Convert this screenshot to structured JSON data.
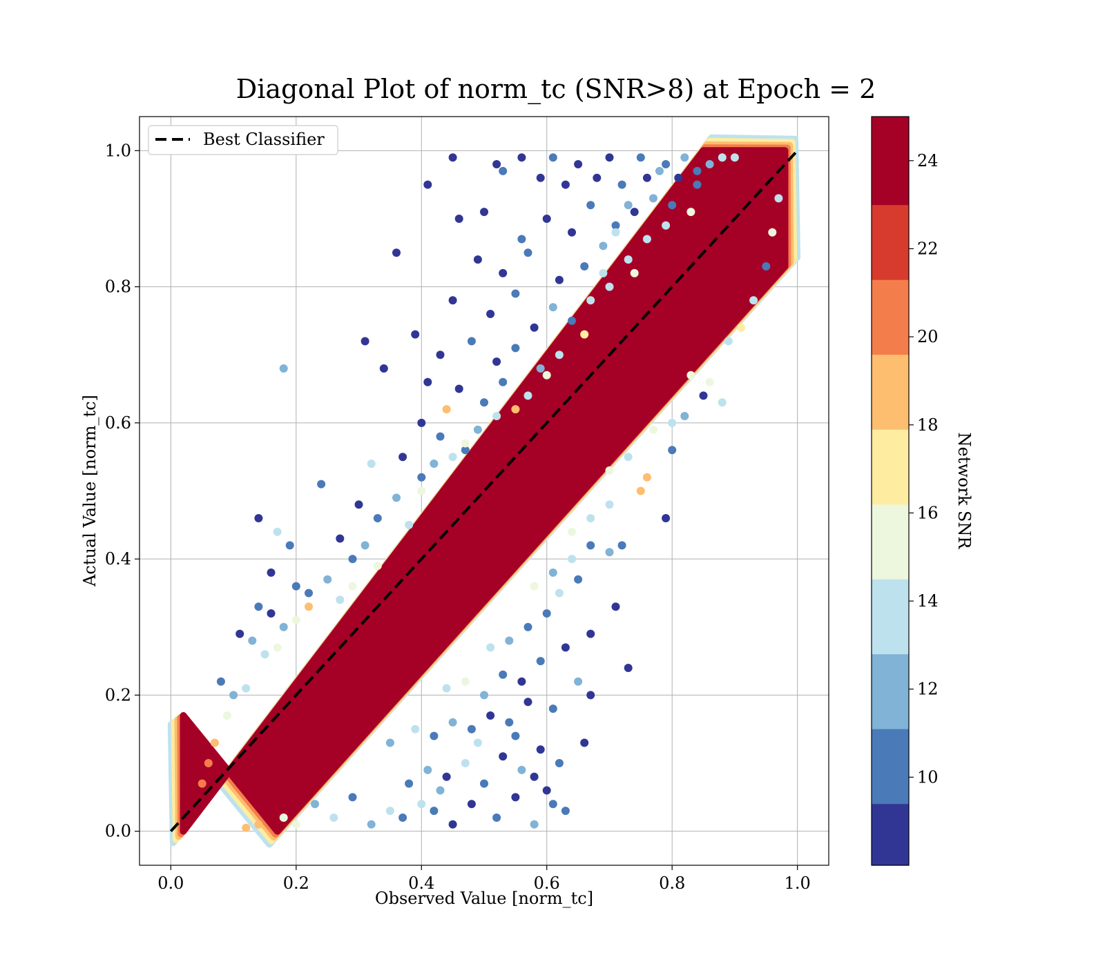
{
  "chart_data": {
    "type": "scatter",
    "title": "Diagonal Plot of norm_tc (SNR>8) at Epoch = 2",
    "xlabel": "Observed Value [norm_tc]",
    "ylabel": "Actual Value [norm_tc]",
    "xlim": [
      -0.05,
      1.05
    ],
    "ylim": [
      -0.05,
      1.05
    ],
    "x_ticks": [
      "0.0",
      "0.2",
      "0.4",
      "0.6",
      "0.8",
      "1.0"
    ],
    "y_ticks": [
      "0.0",
      "0.2",
      "0.4",
      "0.6",
      "0.8",
      "1.0"
    ],
    "grid": true,
    "legend": {
      "placement": "upper-left",
      "entries": [
        "Best Classifier"
      ]
    },
    "reference_line": {
      "name": "Best Classifier",
      "style": "dashed",
      "color": "#000000",
      "x": [
        0,
        1
      ],
      "y": [
        0,
        1
      ]
    },
    "colorbar": {
      "label": "Network SNR",
      "ticks": [
        "10",
        "12",
        "14",
        "16",
        "18",
        "20",
        "22",
        "24"
      ],
      "range": [
        8,
        25
      ],
      "bands": [
        {
          "from": 8,
          "to": 9.4,
          "color": "#313695"
        },
        {
          "from": 9.4,
          "to": 11.1,
          "color": "#4a7ab8"
        },
        {
          "from": 11.1,
          "to": 12.8,
          "color": "#80b3d6"
        },
        {
          "from": 12.8,
          "to": 14.5,
          "color": "#bde2ee"
        },
        {
          "from": 14.5,
          "to": 16.2,
          "color": "#edf7de"
        },
        {
          "from": 16.2,
          "to": 17.9,
          "color": "#feeca1"
        },
        {
          "from": 17.9,
          "to": 19.6,
          "color": "#fdbe6f"
        },
        {
          "from": 19.6,
          "to": 21.3,
          "color": "#f47d4c"
        },
        {
          "from": 21.3,
          "to": 23.0,
          "color": "#d73b2e"
        },
        {
          "from": 23.0,
          "to": 25,
          "color": "#a50026"
        }
      ]
    },
    "core_band": {
      "color": "#a50026",
      "x": [
        0.02,
        0.02,
        0.17,
        0.98,
        0.98,
        0.85
      ],
      "y": [
        0.0,
        0.17,
        0.0,
        0.83,
        1.0,
        1.0
      ]
    },
    "series": [
      {
        "name": "outliers",
        "points": [
          [
            0.45,
            0.99,
            9
          ],
          [
            0.52,
            0.98,
            9
          ],
          [
            0.56,
            0.99,
            9
          ],
          [
            0.61,
            0.99,
            10
          ],
          [
            0.65,
            0.98,
            9
          ],
          [
            0.7,
            0.99,
            9
          ],
          [
            0.75,
            0.99,
            10
          ],
          [
            0.41,
            0.95,
            9
          ],
          [
            0.53,
            0.97,
            10
          ],
          [
            0.59,
            0.96,
            9
          ],
          [
            0.63,
            0.95,
            9
          ],
          [
            0.68,
            0.96,
            9
          ],
          [
            0.72,
            0.95,
            10
          ],
          [
            0.78,
            0.97,
            12
          ],
          [
            0.81,
            0.96,
            9
          ],
          [
            0.84,
            0.97,
            11
          ],
          [
            0.86,
            0.98,
            12
          ],
          [
            0.88,
            0.99,
            13
          ],
          [
            0.9,
            0.99,
            14
          ],
          [
            0.46,
            0.9,
            9
          ],
          [
            0.5,
            0.91,
            9
          ],
          [
            0.56,
            0.87,
            10
          ],
          [
            0.6,
            0.9,
            9
          ],
          [
            0.64,
            0.88,
            9
          ],
          [
            0.67,
            0.92,
            11
          ],
          [
            0.71,
            0.89,
            10
          ],
          [
            0.74,
            0.91,
            9
          ],
          [
            0.77,
            0.93,
            12
          ],
          [
            0.8,
            0.92,
            11
          ],
          [
            0.36,
            0.85,
            9
          ],
          [
            0.49,
            0.84,
            9
          ],
          [
            0.53,
            0.82,
            9
          ],
          [
            0.57,
            0.85,
            10
          ],
          [
            0.62,
            0.81,
            9
          ],
          [
            0.66,
            0.83,
            11
          ],
          [
            0.69,
            0.86,
            12
          ],
          [
            0.73,
            0.84,
            13
          ],
          [
            0.76,
            0.87,
            14
          ],
          [
            0.79,
            0.89,
            14
          ],
          [
            0.83,
            0.91,
            15
          ],
          [
            0.45,
            0.78,
            9
          ],
          [
            0.51,
            0.76,
            9
          ],
          [
            0.55,
            0.79,
            10
          ],
          [
            0.58,
            0.74,
            9
          ],
          [
            0.61,
            0.77,
            12
          ],
          [
            0.64,
            0.75,
            11
          ],
          [
            0.67,
            0.78,
            13
          ],
          [
            0.7,
            0.8,
            14
          ],
          [
            0.74,
            0.82,
            16
          ],
          [
            0.31,
            0.72,
            9
          ],
          [
            0.39,
            0.73,
            9
          ],
          [
            0.43,
            0.7,
            9
          ],
          [
            0.48,
            0.72,
            10
          ],
          [
            0.52,
            0.69,
            9
          ],
          [
            0.55,
            0.71,
            11
          ],
          [
            0.59,
            0.68,
            12
          ],
          [
            0.62,
            0.7,
            14
          ],
          [
            0.66,
            0.73,
            17
          ],
          [
            0.34,
            0.68,
            9
          ],
          [
            0.41,
            0.66,
            9
          ],
          [
            0.44,
            0.62,
            19
          ],
          [
            0.46,
            0.65,
            9
          ],
          [
            0.5,
            0.63,
            10
          ],
          [
            0.53,
            0.66,
            11
          ],
          [
            0.57,
            0.64,
            13
          ],
          [
            0.6,
            0.67,
            15
          ],
          [
            0.18,
            0.68,
            12
          ],
          [
            0.4,
            0.6,
            9
          ],
          [
            0.43,
            0.58,
            11
          ],
          [
            0.47,
            0.56,
            10
          ],
          [
            0.49,
            0.59,
            12
          ],
          [
            0.52,
            0.61,
            14
          ],
          [
            0.55,
            0.62,
            18
          ],
          [
            0.32,
            0.54,
            13
          ],
          [
            0.37,
            0.55,
            9
          ],
          [
            0.4,
            0.52,
            11
          ],
          [
            0.42,
            0.54,
            12
          ],
          [
            0.45,
            0.55,
            14
          ],
          [
            0.47,
            0.57,
            16
          ],
          [
            0.24,
            0.51,
            11
          ],
          [
            0.3,
            0.48,
            9
          ],
          [
            0.33,
            0.46,
            11
          ],
          [
            0.36,
            0.49,
            12
          ],
          [
            0.38,
            0.45,
            14
          ],
          [
            0.4,
            0.5,
            15
          ],
          [
            0.14,
            0.46,
            9
          ],
          [
            0.17,
            0.44,
            13
          ],
          [
            0.19,
            0.42,
            10
          ],
          [
            0.27,
            0.43,
            9
          ],
          [
            0.29,
            0.4,
            11
          ],
          [
            0.31,
            0.42,
            12
          ],
          [
            0.33,
            0.39,
            15
          ],
          [
            0.16,
            0.38,
            9
          ],
          [
            0.2,
            0.36,
            10
          ],
          [
            0.22,
            0.35,
            11
          ],
          [
            0.25,
            0.37,
            12
          ],
          [
            0.27,
            0.34,
            14
          ],
          [
            0.29,
            0.36,
            16
          ],
          [
            0.14,
            0.33,
            11
          ],
          [
            0.16,
            0.32,
            9
          ],
          [
            0.18,
            0.3,
            12
          ],
          [
            0.2,
            0.31,
            15
          ],
          [
            0.22,
            0.33,
            18
          ],
          [
            0.11,
            0.29,
            9
          ],
          [
            0.13,
            0.28,
            12
          ],
          [
            0.15,
            0.26,
            13
          ],
          [
            0.17,
            0.27,
            16
          ],
          [
            0.08,
            0.22,
            10
          ],
          [
            0.1,
            0.2,
            12
          ],
          [
            0.12,
            0.21,
            14
          ],
          [
            0.09,
            0.17,
            16
          ],
          [
            0.07,
            0.13,
            19
          ],
          [
            0.06,
            0.1,
            20
          ],
          [
            0.05,
            0.07,
            21
          ],
          [
            0.45,
            0.01,
            9
          ],
          [
            0.42,
            0.03,
            10
          ],
          [
            0.48,
            0.04,
            9
          ],
          [
            0.52,
            0.02,
            11
          ],
          [
            0.55,
            0.05,
            9
          ],
          [
            0.58,
            0.01,
            12
          ],
          [
            0.6,
            0.06,
            9
          ],
          [
            0.63,
            0.03,
            10
          ],
          [
            0.38,
            0.07,
            11
          ],
          [
            0.41,
            0.09,
            12
          ],
          [
            0.44,
            0.08,
            9
          ],
          [
            0.47,
            0.1,
            13
          ],
          [
            0.5,
            0.07,
            10
          ],
          [
            0.53,
            0.11,
            9
          ],
          [
            0.56,
            0.09,
            12
          ],
          [
            0.59,
            0.12,
            9
          ],
          [
            0.62,
            0.1,
            10
          ],
          [
            0.66,
            0.13,
            9
          ],
          [
            0.35,
            0.13,
            12
          ],
          [
            0.39,
            0.15,
            14
          ],
          [
            0.42,
            0.14,
            11
          ],
          [
            0.45,
            0.16,
            12
          ],
          [
            0.48,
            0.15,
            10
          ],
          [
            0.51,
            0.17,
            9
          ],
          [
            0.54,
            0.16,
            11
          ],
          [
            0.57,
            0.19,
            9
          ],
          [
            0.61,
            0.18,
            10
          ],
          [
            0.65,
            0.22,
            12
          ],
          [
            0.67,
            0.2,
            9
          ],
          [
            0.44,
            0.21,
            14
          ],
          [
            0.47,
            0.22,
            16
          ],
          [
            0.5,
            0.2,
            12
          ],
          [
            0.53,
            0.23,
            10
          ],
          [
            0.56,
            0.22,
            9
          ],
          [
            0.59,
            0.25,
            11
          ],
          [
            0.63,
            0.27,
            9
          ],
          [
            0.67,
            0.29,
            9
          ],
          [
            0.73,
            0.24,
            9
          ],
          [
            0.51,
            0.27,
            14
          ],
          [
            0.54,
            0.28,
            12
          ],
          [
            0.57,
            0.3,
            10
          ],
          [
            0.6,
            0.32,
            11
          ],
          [
            0.62,
            0.35,
            14
          ],
          [
            0.65,
            0.37,
            10
          ],
          [
            0.71,
            0.33,
            9
          ],
          [
            0.58,
            0.36,
            15
          ],
          [
            0.61,
            0.38,
            12
          ],
          [
            0.64,
            0.4,
            13
          ],
          [
            0.67,
            0.42,
            11
          ],
          [
            0.7,
            0.41,
            12
          ],
          [
            0.72,
            0.42,
            10
          ],
          [
            0.64,
            0.44,
            16
          ],
          [
            0.67,
            0.46,
            14
          ],
          [
            0.7,
            0.48,
            13
          ],
          [
            0.75,
            0.5,
            18
          ],
          [
            0.79,
            0.46,
            9
          ],
          [
            0.7,
            0.53,
            15
          ],
          [
            0.73,
            0.55,
            14
          ],
          [
            0.76,
            0.52,
            19
          ],
          [
            0.8,
            0.56,
            10
          ],
          [
            0.77,
            0.59,
            16
          ],
          [
            0.8,
            0.6,
            14
          ],
          [
            0.82,
            0.61,
            12
          ],
          [
            0.85,
            0.64,
            9
          ],
          [
            0.88,
            0.63,
            14
          ],
          [
            0.83,
            0.67,
            15
          ],
          [
            0.86,
            0.66,
            16
          ],
          [
            0.89,
            0.72,
            14
          ],
          [
            0.91,
            0.74,
            17
          ],
          [
            0.93,
            0.78,
            13
          ],
          [
            0.95,
            0.83,
            11
          ],
          [
            0.96,
            0.88,
            15
          ],
          [
            0.97,
            0.93,
            14
          ],
          [
            0.23,
            0.04,
            12
          ],
          [
            0.26,
            0.02,
            13
          ],
          [
            0.29,
            0.05,
            11
          ],
          [
            0.32,
            0.01,
            12
          ],
          [
            0.35,
            0.03,
            13
          ],
          [
            0.18,
            0.02,
            16
          ],
          [
            0.2,
            0.01,
            15
          ],
          [
            0.14,
            0.01,
            18
          ],
          [
            0.12,
            0.005,
            19
          ],
          [
            0.58,
            0.08,
            9
          ],
          [
            0.61,
            0.04,
            10
          ],
          [
            0.4,
            0.04,
            13
          ],
          [
            0.37,
            0.02,
            11
          ],
          [
            0.49,
            0.13,
            14
          ],
          [
            0.55,
            0.14,
            11
          ],
          [
            0.43,
            0.06,
            12
          ],
          [
            0.71,
            0.88,
            13
          ],
          [
            0.73,
            0.92,
            12
          ],
          [
            0.69,
            0.82,
            14
          ],
          [
            0.76,
            0.96,
            9
          ],
          [
            0.79,
            0.98,
            10
          ],
          [
            0.82,
            0.99,
            12
          ],
          [
            0.84,
            0.95,
            10
          ]
        ]
      }
    ]
  }
}
